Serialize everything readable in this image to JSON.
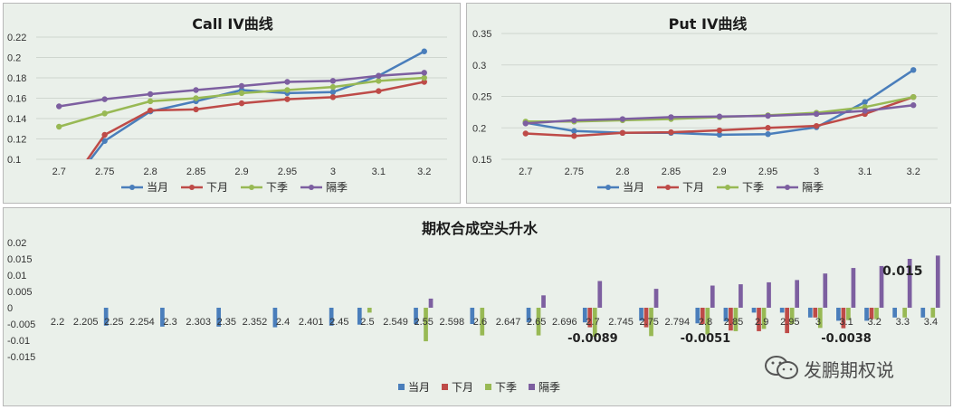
{
  "chart_data": [
    {
      "type": "line",
      "title": "Call IV曲线",
      "categories": [
        "2.7",
        "2.75",
        "2.8",
        "2.85",
        "2.9",
        "2.95",
        "3",
        "3.1",
        "3.2"
      ],
      "yticks": [
        "0.22",
        "0.2",
        "0.18",
        "0.16",
        "0.14",
        "0.12",
        "0.1"
      ],
      "ylim": [
        0.1,
        0.22
      ],
      "grid": true,
      "legend_position": "bottom",
      "series": [
        {
          "name": "当月",
          "color": "#4a7ebb",
          "values": [
            0.06,
            0.118,
            0.147,
            0.157,
            0.168,
            0.165,
            0.166,
            0.182,
            0.206
          ]
        },
        {
          "name": "下月",
          "color": "#be4b48",
          "values": [
            0.06,
            0.124,
            0.148,
            0.149,
            0.155,
            0.159,
            0.161,
            0.167,
            0.176
          ]
        },
        {
          "name": "下季",
          "color": "#98b954",
          "values": [
            0.132,
            0.145,
            0.157,
            0.16,
            0.165,
            0.168,
            0.171,
            0.177,
            0.18
          ]
        },
        {
          "name": "隔季",
          "color": "#7d5fa0",
          "values": [
            0.152,
            0.159,
            0.164,
            0.168,
            0.172,
            0.176,
            0.177,
            0.182,
            0.185
          ]
        }
      ]
    },
    {
      "type": "line",
      "title": "Put IV曲线",
      "categories": [
        "2.7",
        "2.75",
        "2.8",
        "2.85",
        "2.9",
        "2.95",
        "3",
        "3.1",
        "3.2"
      ],
      "yticks": [
        "0.35",
        "0.3",
        "0.25",
        "0.2",
        "0.15"
      ],
      "ylim": [
        0.15,
        0.35
      ],
      "grid": true,
      "legend_position": "bottom",
      "series": [
        {
          "name": "当月",
          "color": "#4a7ebb",
          "values": [
            0.208,
            0.195,
            0.192,
            0.192,
            0.189,
            0.19,
            0.201,
            0.241,
            0.292
          ]
        },
        {
          "name": "下月",
          "color": "#be4b48",
          "values": [
            0.191,
            0.187,
            0.192,
            0.193,
            0.196,
            0.2,
            0.203,
            0.222,
            0.249
          ]
        },
        {
          "name": "下季",
          "color": "#98b954",
          "values": [
            0.21,
            0.21,
            0.212,
            0.214,
            0.217,
            0.22,
            0.224,
            0.233,
            0.249
          ]
        },
        {
          "name": "隔季",
          "color": "#7d5fa0",
          "values": [
            0.207,
            0.212,
            0.214,
            0.217,
            0.218,
            0.219,
            0.222,
            0.227,
            0.236
          ]
        }
      ]
    },
    {
      "type": "bar",
      "title": "期权合成空头升水",
      "categories": [
        "2.2",
        "2.205",
        "2.25",
        "2.254",
        "2.3",
        "2.303",
        "2.35",
        "2.352",
        "2.4",
        "2.401",
        "2.45",
        "2.5",
        "2.549",
        "2.55",
        "2.598",
        "2.6",
        "2.647",
        "2.65",
        "2.696",
        "2.7",
        "2.745",
        "2.75",
        "2.794",
        "2.8",
        "2.85",
        "2.9",
        "2.95",
        "3",
        "3.1",
        "3.2",
        "3.3",
        "3.4"
      ],
      "yticks": [
        "0.02",
        "0.015",
        "0.01",
        "0.005",
        "0",
        "-0.005",
        "-0.01",
        "-0.015"
      ],
      "ylim": [
        -0.015,
        0.02
      ],
      "grid": false,
      "legend_position": "bottom",
      "annotations": [
        "-0.0089",
        "-0.0051",
        "-0.0038",
        "0.015"
      ],
      "series": [
        {
          "name": "当月",
          "color": "#4a7ebb",
          "values": [
            0,
            0,
            -0.0055,
            0,
            -0.0058,
            0,
            -0.0058,
            0,
            -0.006,
            0,
            -0.0055,
            -0.0052,
            0,
            -0.005,
            0,
            -0.005,
            0,
            -0.0045,
            0,
            -0.0045,
            0,
            -0.004,
            0,
            -0.0048,
            -0.0042,
            -0.0015,
            -0.0015,
            -0.003,
            -0.004,
            -0.004,
            -0.003,
            -0.003
          ]
        },
        {
          "name": "下月",
          "color": "#be4b48",
          "values": [
            0,
            0,
            0,
            0,
            0,
            0,
            0,
            0,
            0,
            0,
            0,
            0,
            0,
            0,
            0,
            0,
            0,
            0,
            0,
            -0.006,
            0,
            -0.006,
            0,
            -0.005,
            -0.007,
            -0.0072,
            -0.0078,
            -0.003,
            -0.0063,
            -0.0035,
            0,
            0
          ]
        },
        {
          "name": "下季",
          "color": "#98b954",
          "values": [
            0,
            0,
            0,
            0,
            0,
            0,
            0,
            0,
            0,
            0,
            0,
            -0.0015,
            0,
            -0.0103,
            0,
            -0.0085,
            0,
            -0.0085,
            0,
            -0.0089,
            0,
            -0.0087,
            0,
            -0.0082,
            -0.0072,
            -0.0065,
            -0.005,
            -0.0062,
            -0.0038,
            -0.0035,
            -0.003,
            -0.003
          ]
        },
        {
          "name": "隔季",
          "color": "#7d5fa0",
          "values": [
            0,
            0,
            0,
            0,
            0,
            0,
            0,
            0,
            0,
            0,
            0,
            0,
            0,
            0.0028,
            0,
            0,
            0,
            0.0038,
            0,
            0.0082,
            0,
            0.0058,
            0,
            0.0068,
            0.0072,
            0.0078,
            0.0085,
            0.0105,
            0.0122,
            0.0128,
            0.015,
            0.016
          ]
        }
      ]
    }
  ],
  "watermark": {
    "text": "发鹏期权说",
    "icon": "wechat-icon"
  }
}
